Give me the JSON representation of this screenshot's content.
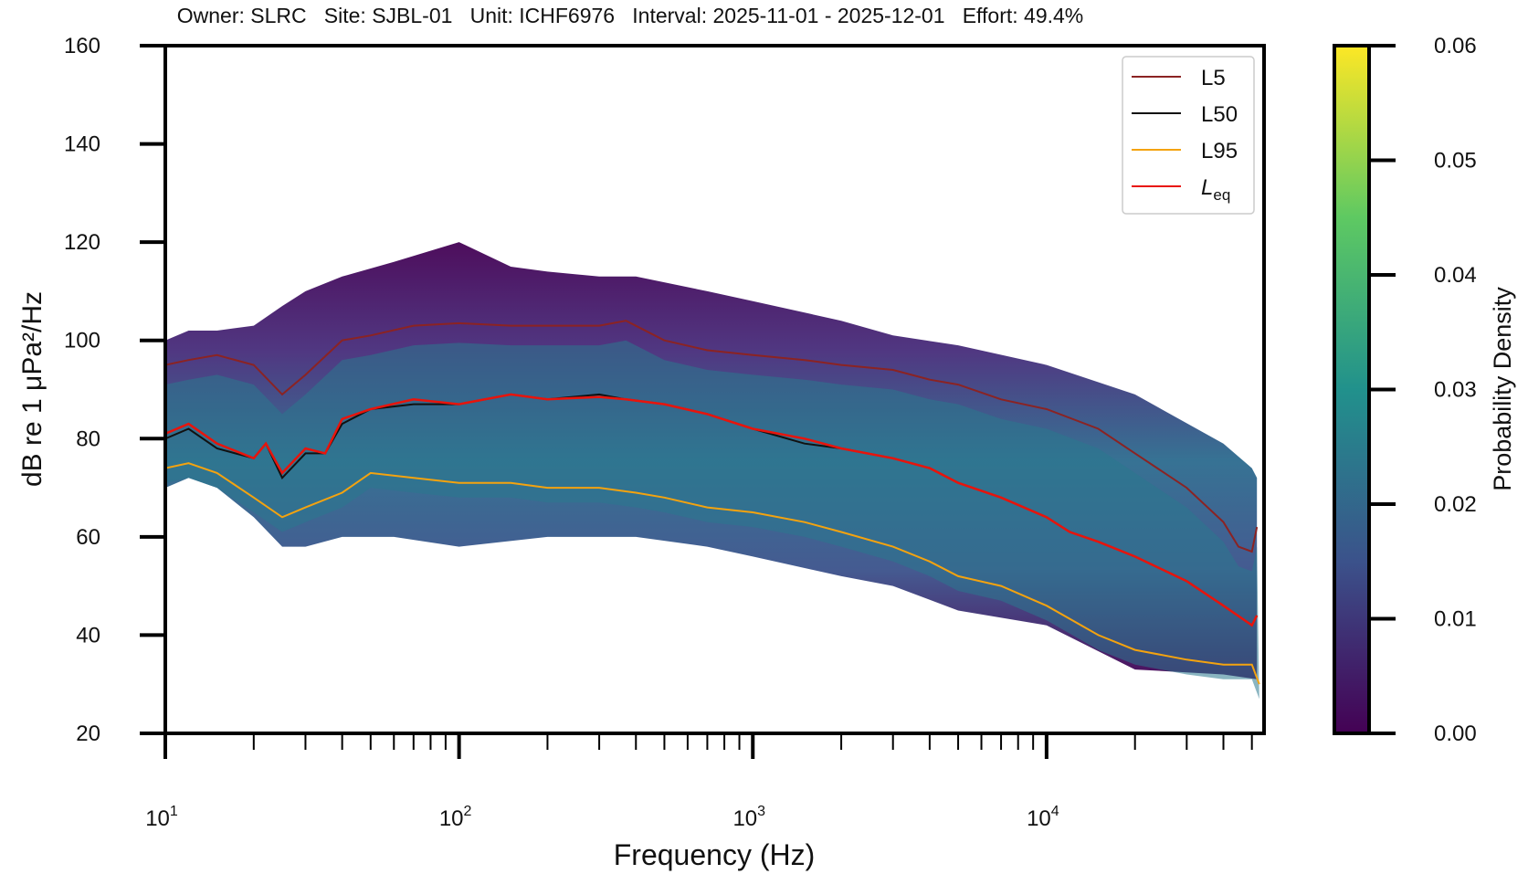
{
  "header": {
    "owner": "Owner: SLRC",
    "site": "Site: SJBL-01",
    "unit": "Unit: ICHF6976",
    "interval": "Interval: 2025-11-01 - 2025-12-01",
    "effort": "Effort: 49.4%"
  },
  "chart_data": {
    "type": "heatmap",
    "xlabel": "Frequency (Hz)",
    "ylabel": "dB re 1 μPa²/Hz",
    "colorbar_label": "Probability Density",
    "x_scale": "log",
    "xlim": [
      10,
      55000
    ],
    "ylim": [
      20,
      160
    ],
    "x_ticks": [
      {
        "base": "10",
        "exp": "1",
        "value": 10
      },
      {
        "base": "10",
        "exp": "2",
        "value": 100
      },
      {
        "base": "10",
        "exp": "3",
        "value": 1000
      },
      {
        "base": "10",
        "exp": "4",
        "value": 10000
      }
    ],
    "y_ticks": [
      "20",
      "40",
      "60",
      "80",
      "100",
      "120",
      "140",
      "160"
    ],
    "colorbar": {
      "range": [
        0.0,
        0.06
      ],
      "ticks": [
        "0.00",
        "0.01",
        "0.02",
        "0.03",
        "0.04",
        "0.05",
        "0.06"
      ],
      "colormap": "viridis",
      "colors": [
        "#440154",
        "#3b528b",
        "#21918c",
        "#5ec962",
        "#fde725"
      ]
    },
    "grid": false,
    "legend_position": "top-right",
    "series": [
      {
        "name": "L5",
        "color": "#8b2323",
        "points": [
          [
            10,
            95
          ],
          [
            12,
            96
          ],
          [
            15,
            97
          ],
          [
            20,
            95
          ],
          [
            25,
            89
          ],
          [
            30,
            93
          ],
          [
            40,
            100
          ],
          [
            50,
            101
          ],
          [
            70,
            103
          ],
          [
            100,
            103.5
          ],
          [
            150,
            103
          ],
          [
            200,
            103
          ],
          [
            300,
            103
          ],
          [
            370,
            104
          ],
          [
            500,
            100
          ],
          [
            700,
            98
          ],
          [
            1000,
            97
          ],
          [
            1500,
            96
          ],
          [
            2000,
            95
          ],
          [
            3000,
            94
          ],
          [
            4000,
            92
          ],
          [
            5000,
            91
          ],
          [
            7000,
            88
          ],
          [
            10000,
            86
          ],
          [
            15000,
            82
          ],
          [
            20000,
            77
          ],
          [
            30000,
            70
          ],
          [
            40000,
            63
          ],
          [
            45000,
            58
          ],
          [
            50000,
            57
          ],
          [
            52000,
            62
          ]
        ]
      },
      {
        "name": "L50",
        "color": "#111111",
        "points": [
          [
            10,
            80
          ],
          [
            12,
            82
          ],
          [
            15,
            78
          ],
          [
            20,
            76
          ],
          [
            22,
            79
          ],
          [
            25,
            72
          ],
          [
            30,
            77
          ],
          [
            35,
            77
          ],
          [
            40,
            83
          ],
          [
            50,
            86
          ],
          [
            70,
            87
          ],
          [
            100,
            87
          ],
          [
            150,
            89
          ],
          [
            200,
            88
          ],
          [
            300,
            89
          ],
          [
            370,
            88
          ],
          [
            500,
            87
          ],
          [
            700,
            85
          ],
          [
            1000,
            82
          ],
          [
            1500,
            79
          ],
          [
            2000,
            78
          ],
          [
            3000,
            76
          ],
          [
            4000,
            74
          ],
          [
            5000,
            71
          ],
          [
            7000,
            68
          ],
          [
            10000,
            64
          ],
          [
            12000,
            61
          ],
          [
            15000,
            59
          ],
          [
            20000,
            56
          ],
          [
            30000,
            51
          ],
          [
            40000,
            46
          ],
          [
            50000,
            42
          ],
          [
            52000,
            44
          ]
        ]
      },
      {
        "name": "L95",
        "color": "#f4a30f",
        "points": [
          [
            10,
            74
          ],
          [
            12,
            75
          ],
          [
            15,
            73
          ],
          [
            20,
            68
          ],
          [
            25,
            64
          ],
          [
            30,
            66
          ],
          [
            40,
            69
          ],
          [
            50,
            73
          ],
          [
            70,
            72
          ],
          [
            100,
            71
          ],
          [
            150,
            71
          ],
          [
            200,
            70
          ],
          [
            300,
            70
          ],
          [
            400,
            69
          ],
          [
            500,
            68
          ],
          [
            700,
            66
          ],
          [
            1000,
            65
          ],
          [
            1500,
            63
          ],
          [
            2000,
            61
          ],
          [
            3000,
            58
          ],
          [
            4000,
            55
          ],
          [
            5000,
            52
          ],
          [
            7000,
            50
          ],
          [
            10000,
            46
          ],
          [
            15000,
            40
          ],
          [
            20000,
            37
          ],
          [
            30000,
            35
          ],
          [
            40000,
            34
          ],
          [
            50000,
            34
          ],
          [
            53000,
            30
          ]
        ]
      },
      {
        "name": "Leq",
        "label_base": "L",
        "label_sub": "eq",
        "color": "#e8140c",
        "points": [
          [
            10,
            81
          ],
          [
            12,
            83
          ],
          [
            15,
            79
          ],
          [
            20,
            76
          ],
          [
            22,
            79
          ],
          [
            25,
            73
          ],
          [
            30,
            78
          ],
          [
            35,
            77
          ],
          [
            40,
            84
          ],
          [
            50,
            86
          ],
          [
            70,
            88
          ],
          [
            100,
            87
          ],
          [
            150,
            89
          ],
          [
            200,
            88
          ],
          [
            300,
            88.5
          ],
          [
            370,
            88
          ],
          [
            500,
            87
          ],
          [
            700,
            85
          ],
          [
            1000,
            82
          ],
          [
            1500,
            80
          ],
          [
            2000,
            78
          ],
          [
            3000,
            76
          ],
          [
            4000,
            74
          ],
          [
            5000,
            71
          ],
          [
            7000,
            68
          ],
          [
            10000,
            64
          ],
          [
            12000,
            61
          ],
          [
            15000,
            59
          ],
          [
            20000,
            56
          ],
          [
            30000,
            51
          ],
          [
            40000,
            46
          ],
          [
            50000,
            42
          ],
          [
            52000,
            44
          ]
        ]
      }
    ],
    "density_bands": [
      [
        [
          10,
          70
        ],
        [
          12,
          72
        ],
        [
          15,
          70
        ],
        [
          20,
          64
        ],
        [
          25,
          58
        ],
        [
          30,
          58
        ],
        [
          40,
          60
        ],
        [
          60,
          60
        ],
        [
          100,
          58
        ],
        [
          200,
          60
        ],
        [
          400,
          60
        ],
        [
          700,
          58
        ],
        [
          1000,
          56
        ],
        [
          2000,
          52
        ],
        [
          3000,
          50
        ],
        [
          5000,
          45
        ],
        [
          10000,
          42
        ],
        [
          20000,
          33
        ],
        [
          40000,
          32
        ],
        [
          52000,
          31
        ]
      ],
      [
        [
          10,
          100
        ],
        [
          12,
          102
        ],
        [
          15,
          102
        ],
        [
          20,
          103
        ],
        [
          25,
          107
        ],
        [
          30,
          110
        ],
        [
          40,
          113
        ],
        [
          60,
          116
        ],
        [
          100,
          120
        ],
        [
          150,
          115
        ],
        [
          200,
          114
        ],
        [
          300,
          113
        ],
        [
          400,
          113
        ],
        [
          700,
          110
        ],
        [
          1000,
          108
        ],
        [
          2000,
          104
        ],
        [
          3000,
          101
        ],
        [
          5000,
          99
        ],
        [
          10000,
          95
        ],
        [
          20000,
          89
        ],
        [
          40000,
          79
        ],
        [
          50000,
          74
        ],
        [
          52000,
          72
        ]
      ]
    ]
  }
}
